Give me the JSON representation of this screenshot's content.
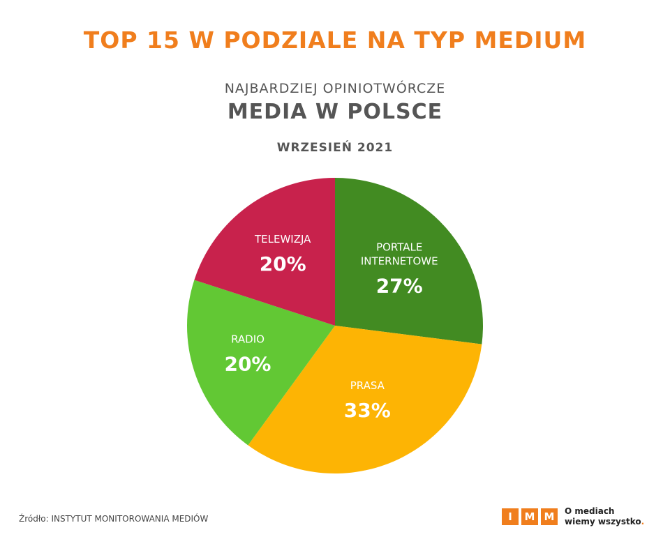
{
  "header": {
    "title": "TOP 15 W PODZIALE NA TYP MEDIUM",
    "subtitle_small": "NAJBARDZIEJ OPINIOTWÓRCZE",
    "subtitle_large": "MEDIA W POLSCE",
    "date": "WRZESIEŃ 2021"
  },
  "chart_data": {
    "type": "pie",
    "slices": [
      {
        "label_lines": [
          "PORTALE",
          "INTERNETOWE"
        ],
        "value": 27,
        "value_label": "27%",
        "color": "#428b22"
      },
      {
        "label_lines": [
          "PRASA"
        ],
        "value": 33,
        "value_label": "33%",
        "color": "#fdb404"
      },
      {
        "label_lines": [
          "RADIO"
        ],
        "value": 20,
        "value_label": "20%",
        "color": "#62c834"
      },
      {
        "label_lines": [
          "TELEWIZJA"
        ],
        "value": 20,
        "value_label": "20%",
        "color": "#c8224c"
      }
    ],
    "start": "12 o'clock",
    "direction": "clockwise"
  },
  "footer": {
    "source": "Źródło: INSTYTUT MONITOROWANIA MEDIÓW",
    "logo_letters": [
      "I",
      "M",
      "M"
    ],
    "logo_line1": "O mediach",
    "logo_line2": "wiemy wszystko",
    "logo_dot": ".",
    "accent_color": "#f07e1d"
  }
}
